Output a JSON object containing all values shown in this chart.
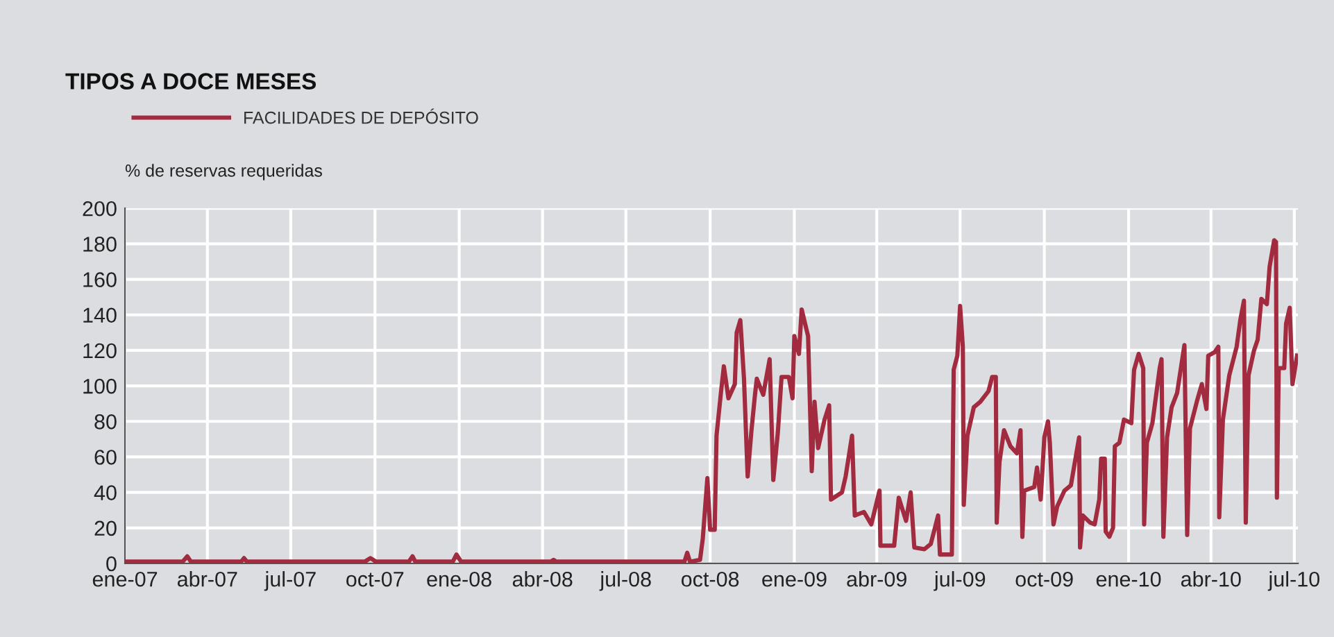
{
  "chart_data": {
    "type": "line",
    "title": "TIPOS A DOCE MESES",
    "ylabel": "% de reservas requeridas",
    "legend": "top left",
    "grid": true,
    "xlim": [
      "2007-01-01",
      "2010-07-05"
    ],
    "xticks": [
      {
        "value": "2007-01-01",
        "label": "ene-07"
      },
      {
        "value": "2007-04-01",
        "label": "abr-07"
      },
      {
        "value": "2007-07-01",
        "label": "jul-07"
      },
      {
        "value": "2007-10-01",
        "label": "oct-07"
      },
      {
        "value": "2008-01-01",
        "label": "ene-08"
      },
      {
        "value": "2008-04-01",
        "label": "abr-08"
      },
      {
        "value": "2008-07-01",
        "label": "jul-08"
      },
      {
        "value": "2008-10-01",
        "label": "oct-08"
      },
      {
        "value": "2009-01-01",
        "label": "ene-09"
      },
      {
        "value": "2009-04-01",
        "label": "abr-09"
      },
      {
        "value": "2009-07-01",
        "label": "jul-09"
      },
      {
        "value": "2009-10-01",
        "label": "oct-09"
      },
      {
        "value": "2010-01-01",
        "label": "ene-10"
      },
      {
        "value": "2010-04-01",
        "label": "abr-10"
      },
      {
        "value": "2010-07-01",
        "label": "jul-10"
      }
    ],
    "ylim": [
      0,
      200
    ],
    "yticks": [
      0,
      20,
      40,
      60,
      80,
      100,
      120,
      140,
      160,
      180,
      200
    ],
    "series": [
      {
        "name": "FACILIDADES DE DEPÓSITO",
        "color": "#a32b3f",
        "x": [
          "2007-01-01",
          "2007-03-05",
          "2007-03-10",
          "2007-03-14",
          "2007-05-08",
          "2007-05-11",
          "2007-05-14",
          "2007-09-20",
          "2007-09-26",
          "2007-10-02",
          "2007-11-07",
          "2007-11-11",
          "2007-11-14",
          "2007-12-25",
          "2007-12-29",
          "2008-01-03",
          "2008-04-10",
          "2008-04-13",
          "2008-04-16",
          "2008-07-01",
          "2008-09-03",
          "2008-09-06",
          "2008-09-09",
          "2008-09-20",
          "2008-09-23",
          "2008-09-28",
          "2008-10-01",
          "2008-10-06",
          "2008-10-08",
          "2008-10-13",
          "2008-10-16",
          "2008-10-21",
          "2008-10-28",
          "2008-10-30",
          "2008-11-03",
          "2008-11-07",
          "2008-11-11",
          "2008-11-15",
          "2008-11-19",
          "2008-11-21",
          "2008-11-28",
          "2008-12-05",
          "2008-12-09",
          "2008-12-14",
          "2008-12-18",
          "2008-12-26",
          "2008-12-30",
          "2009-01-01",
          "2009-01-06",
          "2009-01-09",
          "2009-01-16",
          "2009-01-20",
          "2009-01-23",
          "2009-01-27",
          "2009-02-03",
          "2009-02-08",
          "2009-02-10",
          "2009-02-22",
          "2009-02-26",
          "2009-03-05",
          "2009-03-08",
          "2009-03-18",
          "2009-03-26",
          "2009-04-04",
          "2009-04-05",
          "2009-04-20",
          "2009-04-25",
          "2009-05-03",
          "2009-05-08",
          "2009-05-12",
          "2009-05-23",
          "2009-05-30",
          "2009-06-07",
          "2009-06-09",
          "2009-06-22",
          "2009-06-24",
          "2009-06-28",
          "2009-07-01",
          "2009-07-04",
          "2009-07-05",
          "2009-07-09",
          "2009-07-16",
          "2009-07-23",
          "2009-08-01",
          "2009-08-05",
          "2009-08-09",
          "2009-08-10",
          "2009-08-13",
          "2009-08-18",
          "2009-08-25",
          "2009-09-01",
          "2009-09-05",
          "2009-09-07",
          "2009-09-09",
          "2009-09-20",
          "2009-09-23",
          "2009-09-27",
          "2009-10-01",
          "2009-10-05",
          "2009-10-07",
          "2009-10-11",
          "2009-10-15",
          "2009-10-23",
          "2009-10-30",
          "2009-11-05",
          "2009-11-08",
          "2009-11-09",
          "2009-11-12",
          "2009-11-20",
          "2009-11-25",
          "2009-11-30",
          "2009-12-02",
          "2009-12-06",
          "2009-12-07",
          "2009-12-11",
          "2009-12-15",
          "2009-12-17",
          "2009-12-22",
          "2009-12-27",
          "2010-01-04",
          "2010-01-07",
          "2010-01-12",
          "2010-01-17",
          "2010-01-18",
          "2010-01-21",
          "2010-01-27",
          "2010-02-04",
          "2010-02-06",
          "2010-02-08",
          "2010-02-12",
          "2010-02-17",
          "2010-02-23",
          "2010-03-03",
          "2010-03-06",
          "2010-03-09",
          "2010-03-17",
          "2010-03-22",
          "2010-03-27",
          "2010-03-29",
          "2010-04-05",
          "2010-04-09",
          "2010-04-10",
          "2010-04-14",
          "2010-04-21",
          "2010-04-29",
          "2010-05-03",
          "2010-05-07",
          "2010-05-09",
          "2010-05-12",
          "2010-05-18",
          "2010-05-22",
          "2010-05-26",
          "2010-06-01",
          "2010-06-04",
          "2010-06-09",
          "2010-06-11",
          "2010-06-12",
          "2010-06-14",
          "2010-06-20",
          "2010-06-22",
          "2010-06-26",
          "2010-06-29",
          "2010-07-04"
        ],
        "values": [
          1,
          1,
          4,
          1,
          1,
          3,
          1,
          1,
          3,
          1,
          1,
          4,
          1,
          1,
          5,
          1,
          1,
          2,
          1,
          1,
          1,
          6,
          1,
          2,
          14,
          48,
          19,
          19,
          72,
          97,
          111,
          93,
          101,
          130,
          137,
          104,
          49,
          74,
          95,
          104,
          95,
          115,
          47,
          74,
          105,
          105,
          93,
          128,
          118,
          143,
          128,
          52,
          91,
          65,
          81,
          89,
          36,
          40,
          49,
          72,
          27,
          29,
          22,
          41,
          10,
          10,
          37,
          24,
          40,
          9,
          8,
          11,
          27,
          5,
          5,
          109,
          117,
          145,
          122,
          33,
          72,
          88,
          91,
          97,
          105,
          105,
          23,
          57,
          75,
          66,
          62,
          75,
          15,
          41,
          43,
          54,
          36,
          71,
          80,
          68,
          22,
          32,
          41,
          44,
          62,
          71,
          9,
          27,
          23,
          22,
          36,
          59,
          59,
          18,
          15,
          20,
          66,
          68,
          81,
          79,
          109,
          118,
          110,
          22,
          68,
          79,
          110,
          115,
          15,
          71,
          88,
          96,
          123,
          16,
          76,
          92,
          101,
          87,
          117,
          119,
          122,
          26,
          81,
          106,
          122,
          137,
          148,
          23,
          106,
          120,
          126,
          149,
          146,
          167,
          182,
          181,
          37,
          110,
          110,
          135,
          144,
          101,
          117
        ]
      }
    ]
  }
}
